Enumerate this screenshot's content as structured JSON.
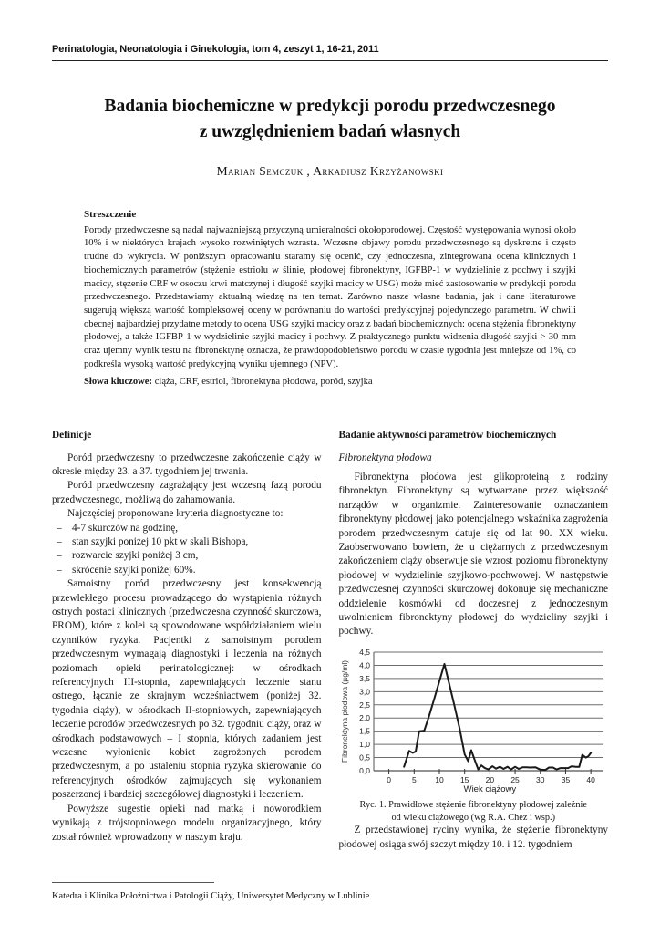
{
  "header": {
    "journal_line": "Perinatologia, Neonatologia i Ginekologia, tom 4, zeszyt 1, 16-21, 2011"
  },
  "title": {
    "line1": "Badania biochemiczne w predykcji porodu przedwczesnego",
    "line2": "z uwzględnieniem badań własnych"
  },
  "authors": {
    "names": "Marian Semczuk ,  Arkadiusz Krzyżanowski"
  },
  "abstract": {
    "heading": "Streszczenie",
    "body": "Porody przedwczesne są nadal najważniejszą przyczyną umieralności okołoporodowej. Częstość występowania wynosi około 10% i w niektórych krajach wysoko rozwiniętych wzrasta. Wczesne objawy porodu przedwczesnego są dyskretne i często trudne do wykrycia. W poniższym opracowaniu staramy się ocenić, czy jednoczesna, zintegrowana ocena klinicznych i biochemicznych parametrów (stężenie estriolu w ślinie, płodowej fibronektyny, IGFBP-1 w wydzielinie z pochwy i szyjki macicy, stężenie CRF w osoczu krwi matczynej i długość szyjki macicy w USG) może mieć zastosowanie w predykcji porodu przedwczesnego. Przedstawiamy aktualną wiedzę na ten temat. Zarówno nasze własne badania, jak i dane literaturowe sugerują większą wartość kompleksowej oceny w porównaniu do wartości predykcyjnej pojedynczego parametru. W chwili obecnej najbardziej przydatne metody to ocena USG szyjki macicy oraz z badań biochemicznych: ocena stężenia fibronektyny płodowej, a także IGFBP-1 w wydzielinie szyjki macicy i pochwy. Z praktycznego punktu widzenia długość szyjki > 30 mm oraz ujemny wynik testu na fibronektynę oznacza, że prawdopodobieństwo porodu w czasie tygodnia jest mniejsze od 1%, co podkreśla wysoką wartość predykcyjną wyniku ujemnego (NPV).",
    "keywords_label": "Słowa kluczowe:",
    "keywords_text": " ciąża, CRF, estriol, fibronektyna płodowa, poród, szyjka"
  },
  "left_column": {
    "heading": "Definicje",
    "para1": "Poród przedwczesny to przedwczesne zakończenie ciąży w okresie między 23. a 37. tygodniem jej trwania.",
    "para2": "Poród przedwczesny zagrażający jest wczesną fazą porodu przedwczesnego, możliwą do zahamowania.",
    "para3": "Najczęściej proponowane kryteria diagnostyczne to:",
    "dash": "–",
    "bullets": [
      "4-7 skurczów na godzinę,",
      "stan szyjki poniżej 10 pkt w skali Bishopa,",
      "rozwarcie szyjki poniżej 3 cm,",
      "skrócenie szyjki poniżej 60%."
    ],
    "para4": "Samoistny poród przedwczesny jest konsekwencją przewlekłego procesu prowadzącego do wystąpienia różnych ostrych postaci klinicznych (przedwczesna czynność skurczowa, PROM), które z kolei są spowodowane współdziałaniem wielu czynników ryzyka. Pacjentki z samoistnym porodem przedwczesnym wymagają diagnostyki i leczenia na różnych poziomach opieki perinatologicznej: w ośrodkach referencyjnych III-stopnia, zapewniających leczenie stanu ostrego, łącznie ze skrajnym wcześniactwem (poniżej 32. tygodnia ciąży), w ośrodkach II-stopniowych, zapewniających leczenie porodów przedwczesnych po 32. tygodniu ciąży, oraz w ośrodkach podstawowych – I stopnia, których zadaniem jest wczesne wyłonienie kobiet zagrożonych porodem przedwczesnym, a po ustaleniu stopnia ryzyka skierowanie do referencyjnych ośrodków zajmujących się wykonaniem poszerzonej i bardziej szczegółowej diagnostyki i leczeniem.",
    "para5": "Powyższe sugestie opieki nad matką i noworodkiem wynikają z trójstopniowego modelu organizacyjnego, który został również wprowadzony w naszym kraju."
  },
  "right_column": {
    "heading": "Badanie aktywności parametrów biochemicznych",
    "subheading": "Fibronektyna płodowa",
    "para1": "Fibronektyna płodowa jest glikoproteiną z rodziny fibronektyn. Fibronektyny są wytwarzane przez większość narządów w organizmie. Zainteresowanie oznaczaniem fibronektyny płodowej jako potencjalnego wskaźnika zagrożenia porodem przedwczesnym datuje się od lat 90. XX wieku. Zaobserwowano bowiem, że u ciężarnych z przedwczesnym zakończeniem ciąży obserwuje się wzrost poziomu fibronektyny płodowej w wydzielinie szyjkowo-pochwowej. W następstwie przedwczesnej czynności skurczowej dokonuje się mechaniczne oddzielenie kosmówki od doczesnej z jednoczesnym uwolnieniem fibronektyny płodowej do wydzieliny szyjki i pochwy.",
    "caption_line1": "Ryc. 1. Prawidłowe stężenie fibronektyny płodowej zależnie",
    "caption_line2": "od wieku ciążowego (wg R.A. Chez i wsp.)",
    "para2": "Z przedstawionej ryciny wynika, że stężenie fibronektyny płodowej osiąga swój szczyt między 10. i 12. tygodniem"
  },
  "chart_data": {
    "type": "line",
    "title": "",
    "xlabel": "Wiek ciążowy",
    "ylabel": "Fibronektyna płodowa (µg/ml)",
    "xlim": [
      -3,
      42.5
    ],
    "ylim": [
      0,
      4.5
    ],
    "xticks": [
      0,
      5,
      10,
      15,
      20,
      25,
      30,
      35,
      40
    ],
    "yticks": [
      0,
      0.5,
      1,
      1.5,
      2,
      2.5,
      3,
      3.5,
      4,
      4.5
    ],
    "ytick_labels": [
      "0,0",
      "0,5",
      "1,0",
      "1,5",
      "2,0",
      "2,5",
      "3,0",
      "3,5",
      "4,0",
      "4,5"
    ],
    "grid": "horizontal",
    "legend": "none",
    "line_color": "#1a1a1a",
    "grid_color": "#6e6e6e",
    "x": [
      3,
      4,
      4.7,
      5.3,
      6,
      7,
      8,
      9,
      10,
      11,
      12,
      13,
      14,
      15,
      15.7,
      16.3,
      17,
      17.7,
      18.3,
      19,
      19.7,
      20.5,
      21.2,
      22,
      22.7,
      23.5,
      24.2,
      25,
      25.7,
      26.5,
      27.2,
      28,
      29,
      30,
      31,
      31.7,
      32.5,
      33.2,
      34,
      34.7,
      35.5,
      36.2,
      37,
      37.7,
      38.3,
      39,
      39.5,
      40
    ],
    "y": [
      0.15,
      0.75,
      0.68,
      0.73,
      1.5,
      1.52,
      2.1,
      2.75,
      3.4,
      4.05,
      3.25,
      2.45,
      1.6,
      0.62,
      0.36,
      0.78,
      0.4,
      0.05,
      0.2,
      0.1,
      0.05,
      0.17,
      0.08,
      0.15,
      0.07,
      0.15,
      0.05,
      0.15,
      0.07,
      0.13,
      0.13,
      0.12,
      0.13,
      0.04,
      0.03,
      0.12,
      0.12,
      0.05,
      0.1,
      0.1,
      0.1,
      0.17,
      0.15,
      0.15,
      0.6,
      0.5,
      0.55,
      0.68
    ]
  },
  "footer": {
    "affiliation": "Katedra i Klinika Położnictwa i Patologii Ciąży, Uniwersytet Medyczny w Lublinie"
  }
}
